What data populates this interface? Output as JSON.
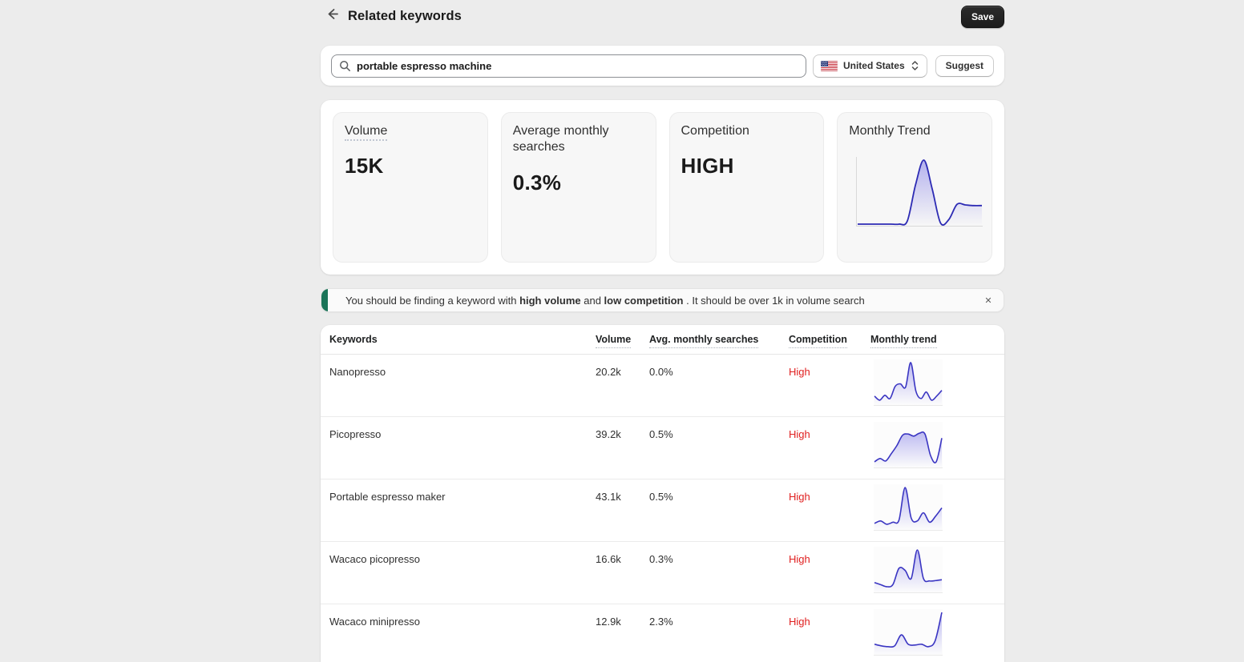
{
  "page": {
    "title": "Related keywords",
    "save_label": "Save"
  },
  "colors": {
    "accent_red": "#e02020",
    "spark_stroke": "#3a35c2",
    "spark_fill": "#7d78e6",
    "banner_green": "#1b7458"
  },
  "icons": {
    "back": "arrow-left-icon",
    "search": "magnifier-icon",
    "country_flag": "us-flag-icon",
    "select_caret": "updown-chevron-icon",
    "close": "x-icon",
    "add": "plus-icon"
  },
  "search": {
    "value": "portable espresso machine",
    "country": "United States",
    "suggest_label": "Suggest"
  },
  "stats": {
    "cards": [
      {
        "label": "Volume",
        "value": "15K"
      },
      {
        "label": "Average monthly searches",
        "value": "0.3%"
      },
      {
        "label": "Competition",
        "value": "HIGH"
      },
      {
        "label": "Monthly Trend",
        "value": ""
      }
    ],
    "monthly_trend_points": [
      0,
      0,
      0,
      0,
      0,
      0,
      0.05,
      0.62,
      1,
      0.55,
      0.02,
      0.07,
      0.31,
      0.3,
      0.29,
      0.29
    ]
  },
  "banner": {
    "prefix": "You should be finding a keyword with ",
    "bold1": "high volume",
    "mid": " and ",
    "bold2": "low competition",
    "suffix": " . It should be over 1k in volume search",
    "close": "✕"
  },
  "table": {
    "headers": {
      "keywords": "Keywords",
      "volume": "Volume",
      "avg": "Avg. monthly searches",
      "competition": "Competition",
      "trend": "Monthly trend"
    },
    "add_label": "+",
    "rows": [
      {
        "keyword": "Nanopresso",
        "volume": "20.2k",
        "avg": "0.0%",
        "competition": "High",
        "trend": [
          0.18,
          0.08,
          0.2,
          0.12,
          0.42,
          0.48,
          0.4,
          1,
          0.3,
          0.12,
          0.28,
          0.08,
          0.18,
          0.32
        ]
      },
      {
        "keyword": "Picopresso",
        "volume": "39.2k",
        "avg": "0.5%",
        "competition": "High",
        "trend": [
          0.1,
          0.18,
          0.12,
          0.3,
          0.5,
          0.75,
          0.78,
          0.73,
          0.8,
          0.78,
          0.25,
          0.1,
          0.68
        ]
      },
      {
        "keyword": "Portable espresso maker",
        "volume": "43.1k",
        "avg": "0.5%",
        "competition": "High",
        "trend": [
          0.12,
          0.18,
          0.1,
          0.15,
          0.2,
          1,
          0.25,
          0.18,
          0.38,
          0.15,
          0.3,
          0.5
        ]
      },
      {
        "keyword": "Wacaco picopresso",
        "volume": "16.6k",
        "avg": "0.3%",
        "competition": "High",
        "trend": [
          0.2,
          0.15,
          0.1,
          0.15,
          0.55,
          0.5,
          0.3,
          1,
          0.3,
          0.24,
          0.25,
          0.27
        ]
      },
      {
        "keyword": "Wacaco minipresso",
        "volume": "12.9k",
        "avg": "2.3%",
        "competition": "High",
        "trend": [
          0.22,
          0.18,
          0.16,
          0.18,
          0.45,
          0.22,
          0.2,
          0.22,
          0.16,
          0.3,
          1
        ]
      }
    ]
  }
}
